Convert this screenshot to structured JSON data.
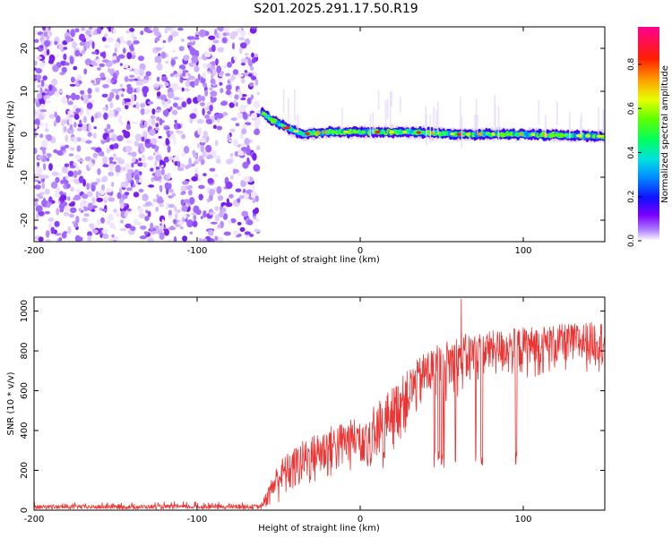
{
  "title": "S201.2025.291.17.50.R19",
  "chart_data": [
    {
      "type": "heatmap",
      "xlabel": "Height of straight line (km)",
      "ylabel": "Frequency (Hz)",
      "xlim": [
        -200,
        150
      ],
      "ylim": [
        -25,
        25
      ],
      "x_ticks": [
        -200,
        -100,
        0,
        100
      ],
      "y_ticks": [
        -20,
        -10,
        0,
        10,
        20
      ],
      "noise_region_x": [
        -200,
        -60
      ],
      "signal_region_x": [
        -60,
        150
      ],
      "signal_center_hz": [
        {
          "x": -60,
          "y": 5
        },
        {
          "x": -55,
          "y": 3.5
        },
        {
          "x": -45,
          "y": 1.5
        },
        {
          "x": -35,
          "y": 0
        },
        {
          "x": -20,
          "y": 0.5
        },
        {
          "x": 0,
          "y": 0.5
        },
        {
          "x": 30,
          "y": 0.5
        },
        {
          "x": 60,
          "y": 0
        },
        {
          "x": 100,
          "y": 0
        },
        {
          "x": 150,
          "y": -0.5
        }
      ],
      "colorbar": {
        "label": "Normalized spectral amplitude",
        "range": [
          0,
          0.97
        ],
        "ticks": [
          "0.0",
          "0.2",
          "0.4",
          "0.6",
          "0.8"
        ]
      }
    },
    {
      "type": "line",
      "xlabel": "Height of straight line (km)",
      "ylabel": "SNR (10 * v/v)",
      "xlim": [
        -200,
        150
      ],
      "ylim": [
        0,
        1070
      ],
      "x_ticks": [
        -200,
        -100,
        0,
        100
      ],
      "y_ticks": [
        0,
        200,
        400,
        600,
        800,
        1000
      ],
      "color": "#ee3333",
      "series": [
        {
          "name": "SNR",
          "envelope": [
            {
              "x": -200,
              "low": 5,
              "high": 40
            },
            {
              "x": -60,
              "low": 5,
              "high": 45
            },
            {
              "x": -50,
              "low": 20,
              "high": 250
            },
            {
              "x": -35,
              "low": 80,
              "high": 350
            },
            {
              "x": -20,
              "low": 120,
              "high": 420
            },
            {
              "x": 0,
              "low": 200,
              "high": 470
            },
            {
              "x": 20,
              "low": 280,
              "high": 620
            },
            {
              "x": 40,
              "low": 500,
              "high": 800
            },
            {
              "x": 60,
              "low": 550,
              "high": 880
            },
            {
              "x": 80,
              "low": 650,
              "high": 900
            },
            {
              "x": 100,
              "low": 650,
              "high": 920
            },
            {
              "x": 150,
              "low": 700,
              "high": 950
            }
          ],
          "dropout_level": 250,
          "dropout_x_range": [
            0,
            105
          ],
          "max_peak": {
            "x": 62,
            "y": 1060
          }
        }
      ]
    }
  ]
}
